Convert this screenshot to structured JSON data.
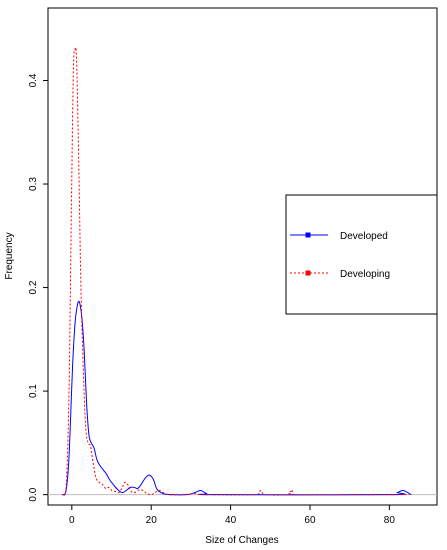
{
  "chart_data": {
    "type": "line",
    "xlabel": "Size of Changes",
    "ylabel": "Frequency",
    "xlim": [
      -6,
      92
    ],
    "ylim": [
      -0.01,
      0.47
    ],
    "x_ticks": [
      0,
      20,
      40,
      60,
      80
    ],
    "y_ticks": [
      0.0,
      0.1,
      0.2,
      0.3,
      0.4
    ],
    "y_tick_labels": [
      "0.0",
      "0.1",
      "0.2",
      "0.3",
      "0.4"
    ],
    "reference_line": 0,
    "grid": false,
    "legend_position": "right",
    "series": [
      {
        "name": "Developed",
        "color": "#0000ff",
        "style": "solid",
        "marker": "square",
        "points": [
          [
            -2.5,
            0.0
          ],
          [
            -1.5,
            0.003
          ],
          [
            -0.8,
            0.03
          ],
          [
            -0.3,
            0.075
          ],
          [
            0.2,
            0.125
          ],
          [
            0.8,
            0.165
          ],
          [
            1.4,
            0.183
          ],
          [
            1.9,
            0.186
          ],
          [
            2.5,
            0.172
          ],
          [
            3.1,
            0.14
          ],
          [
            3.7,
            0.09
          ],
          [
            4.3,
            0.058
          ],
          [
            4.9,
            0.05
          ],
          [
            5.6,
            0.045
          ],
          [
            6.3,
            0.034
          ],
          [
            7.1,
            0.028
          ],
          [
            7.9,
            0.024
          ],
          [
            8.7,
            0.02
          ],
          [
            9.6,
            0.014
          ],
          [
            10.6,
            0.009
          ],
          [
            11.8,
            0.004
          ],
          [
            12.8,
            0.002
          ],
          [
            13.7,
            0.004
          ],
          [
            14.7,
            0.007
          ],
          [
            15.7,
            0.007
          ],
          [
            16.6,
            0.006
          ],
          [
            17.5,
            0.01
          ],
          [
            18.5,
            0.016
          ],
          [
            19.5,
            0.019
          ],
          [
            20.5,
            0.015
          ],
          [
            21.5,
            0.005
          ],
          [
            23.0,
            0.001
          ],
          [
            25.0,
            0.0
          ],
          [
            29.0,
            0.0
          ],
          [
            31.0,
            0.002
          ],
          [
            32.5,
            0.004
          ],
          [
            34.0,
            0.001
          ],
          [
            36.0,
            0.0
          ],
          [
            80.0,
            0.0
          ],
          [
            82.0,
            0.002
          ],
          [
            83.5,
            0.004
          ],
          [
            85.5,
            0.0
          ]
        ]
      },
      {
        "name": "Developing",
        "color": "#ff0000",
        "style": "dotted",
        "marker": "square",
        "points": [
          [
            -2.2,
            0.0
          ],
          [
            -1.4,
            0.01
          ],
          [
            -0.7,
            0.1
          ],
          [
            -0.1,
            0.28
          ],
          [
            0.4,
            0.41
          ],
          [
            0.8,
            0.43
          ],
          [
            1.2,
            0.42
          ],
          [
            1.7,
            0.33
          ],
          [
            2.3,
            0.2
          ],
          [
            2.9,
            0.12
          ],
          [
            3.5,
            0.065
          ],
          [
            4.1,
            0.05
          ],
          [
            4.7,
            0.047
          ],
          [
            5.4,
            0.03
          ],
          [
            6.1,
            0.016
          ],
          [
            6.9,
            0.012
          ],
          [
            7.7,
            0.01
          ],
          [
            8.5,
            0.006
          ],
          [
            9.3,
            0.007
          ],
          [
            10.1,
            0.004
          ],
          [
            11.0,
            0.003
          ],
          [
            11.8,
            0.002
          ],
          [
            12.6,
            0.006
          ],
          [
            13.4,
            0.012
          ],
          [
            14.2,
            0.009
          ],
          [
            15.0,
            0.003
          ],
          [
            15.8,
            0.002
          ],
          [
            16.6,
            0.004
          ],
          [
            17.4,
            0.005
          ],
          [
            18.2,
            0.003
          ],
          [
            19.0,
            0.001
          ],
          [
            20.0,
            0.0
          ],
          [
            21.0,
            0.002
          ],
          [
            22.0,
            0.004
          ],
          [
            23.0,
            0.002
          ],
          [
            24.5,
            0.0
          ],
          [
            28.0,
            0.0
          ],
          [
            31.0,
            0.001
          ],
          [
            33.0,
            0.0
          ],
          [
            46.0,
            0.0
          ],
          [
            47.5,
            0.004
          ],
          [
            48.8,
            0.0
          ],
          [
            54.5,
            0.0
          ],
          [
            55.8,
            0.004
          ],
          [
            57.0,
            0.0
          ],
          [
            85.0,
            0.0
          ]
        ]
      }
    ]
  }
}
